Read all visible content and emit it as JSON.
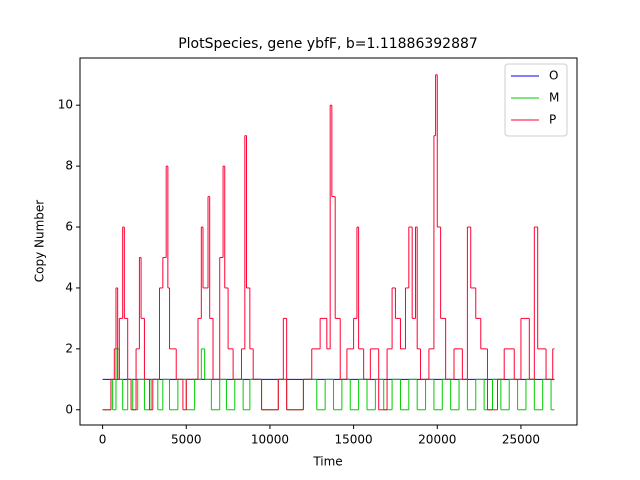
{
  "chart_data": {
    "type": "line",
    "drawstyle": "steps-post",
    "title": "PlotSpecies, gene ybfF, b=1.11886392887",
    "x_label": "Time",
    "y_label": "Copy Number",
    "xlim": [
      -1350,
      28350
    ],
    "ylim": [
      -0.5,
      11.55
    ],
    "xticks": [
      0,
      5000,
      10000,
      15000,
      20000,
      25000
    ],
    "yticks": [
      0,
      2,
      4,
      6,
      8,
      10
    ],
    "legend": "upper right",
    "series": [
      {
        "name": "O",
        "color": "#0000ff",
        "x": [
          0,
          27000
        ],
        "values": [
          1,
          1
        ]
      },
      {
        "name": "M",
        "color": "#00cc00",
        "x": [
          0,
          500,
          600,
          800,
          1000,
          1200,
          1500,
          1800,
          2100,
          2500,
          2900,
          3300,
          3600,
          4000,
          4500,
          5000,
          5500,
          5900,
          6100,
          6500,
          7000,
          7400,
          7900,
          8400,
          8800,
          9500,
          10500,
          11000,
          12000,
          12800,
          13300,
          13800,
          14300,
          14800,
          15300,
          15800,
          16300,
          16800,
          17300,
          17800,
          18300,
          18800,
          19300,
          19800,
          20300,
          20800,
          21300,
          21800,
          22300,
          22800,
          23300,
          23800,
          24300,
          24800,
          25300,
          25800,
          26300,
          26800,
          27000
        ],
        "values": [
          0,
          1,
          0,
          2,
          1,
          0,
          1,
          0,
          1,
          0,
          1,
          0,
          1,
          0,
          1,
          0,
          1,
          2,
          1,
          0,
          1,
          0,
          1,
          0,
          1,
          0,
          1,
          0,
          1,
          0,
          1,
          0,
          1,
          0,
          1,
          0,
          1,
          0,
          1,
          0,
          1,
          0,
          1,
          0,
          1,
          0,
          1,
          0,
          1,
          0,
          1,
          0,
          1,
          0,
          1,
          0,
          1,
          0,
          0
        ]
      },
      {
        "name": "P",
        "color": "#ff0033",
        "x": [
          0,
          500,
          700,
          800,
          900,
          1000,
          1200,
          1300,
          1500,
          1700,
          2000,
          2200,
          2300,
          2500,
          2800,
          3000,
          3400,
          3600,
          3800,
          3900,
          4000,
          4400,
          4800,
          5000,
          5700,
          5900,
          6000,
          6300,
          6400,
          6600,
          7000,
          7200,
          7300,
          7500,
          7800,
          8300,
          8500,
          8600,
          8800,
          9000,
          9500,
          10500,
          10800,
          11000,
          12000,
          12500,
          13000,
          13400,
          13600,
          13700,
          13900,
          14200,
          14600,
          15000,
          15200,
          15300,
          15600,
          16000,
          16500,
          17000,
          17300,
          17500,
          17800,
          18100,
          18300,
          18500,
          18700,
          18800,
          19000,
          19500,
          19800,
          19900,
          20000,
          20200,
          20500,
          21000,
          21500,
          21800,
          22000,
          22300,
          22600,
          23000,
          23600,
          24000,
          24600,
          25000,
          25500,
          25800,
          26000,
          26500,
          26900,
          27000
        ],
        "values": [
          0,
          1,
          2,
          4,
          1,
          3,
          6,
          3,
          1,
          0,
          2,
          5,
          3,
          1,
          0,
          1,
          4,
          5,
          8,
          4,
          2,
          1,
          0,
          1,
          3,
          6,
          4,
          7,
          3,
          1,
          5,
          8,
          4,
          2,
          1,
          2,
          9,
          4,
          2,
          1,
          0,
          1,
          3,
          0,
          1,
          2,
          3,
          2,
          10,
          7,
          3,
          1,
          2,
          3,
          6,
          2,
          1,
          2,
          0,
          2,
          4,
          3,
          2,
          4,
          6,
          3,
          6,
          2,
          1,
          2,
          9,
          11,
          6,
          3,
          1,
          2,
          1,
          6,
          4,
          3,
          2,
          0,
          1,
          2,
          1,
          3,
          1,
          6,
          2,
          1,
          2,
          2
        ]
      }
    ]
  }
}
